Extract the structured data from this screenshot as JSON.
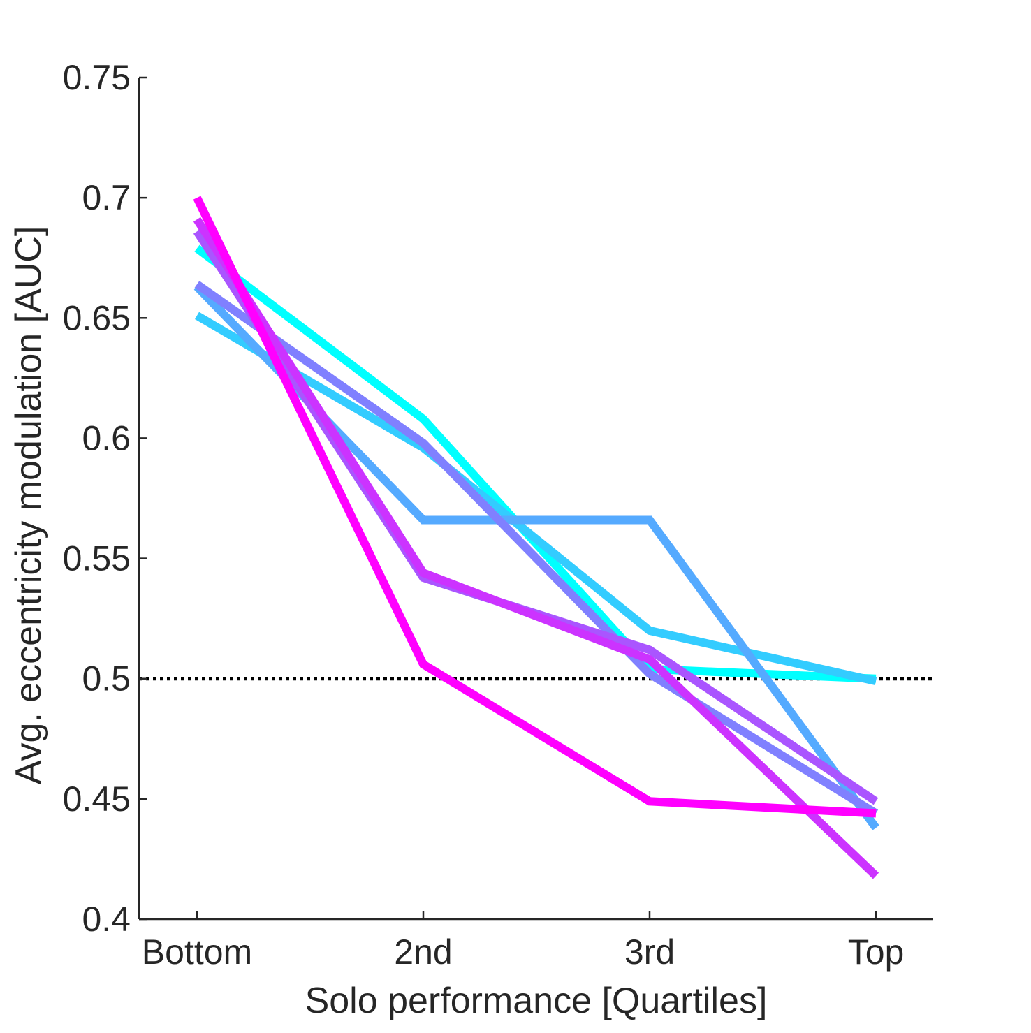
{
  "chart_data": {
    "type": "line",
    "xlabel": "Solo performance [Quartiles]",
    "ylabel": "Avg. eccentricity modulation [AUC]",
    "categories": [
      "Bottom",
      "2nd",
      "3rd",
      "Top"
    ],
    "ylim": [
      0.4,
      0.75
    ],
    "yticks": [
      "0.4",
      "0.45",
      "0.5",
      "0.55",
      "0.6",
      "0.65",
      "0.7",
      "0.75"
    ],
    "grid": false,
    "legend": "none",
    "reference_line": {
      "y": 0.5,
      "style": "dotted",
      "color": "#000000"
    },
    "series": [
      {
        "color": "#00FFFF",
        "values": [
          0.679,
          0.608,
          0.504,
          0.5
        ]
      },
      {
        "color": "#33CCFF",
        "values": [
          0.651,
          0.596,
          0.52,
          0.499
        ]
      },
      {
        "color": "#55AAFF",
        "values": [
          0.663,
          0.566,
          0.566,
          0.438
        ]
      },
      {
        "color": "#8080FF",
        "values": [
          0.664,
          0.598,
          0.502,
          0.444
        ]
      },
      {
        "color": "#AA55FF",
        "values": [
          0.686,
          0.542,
          0.512,
          0.449
        ]
      },
      {
        "color": "#CC33FF",
        "values": [
          0.691,
          0.544,
          0.508,
          0.418
        ]
      },
      {
        "color": "#FF00FF",
        "values": [
          0.7,
          0.506,
          0.449,
          0.444
        ]
      }
    ]
  }
}
